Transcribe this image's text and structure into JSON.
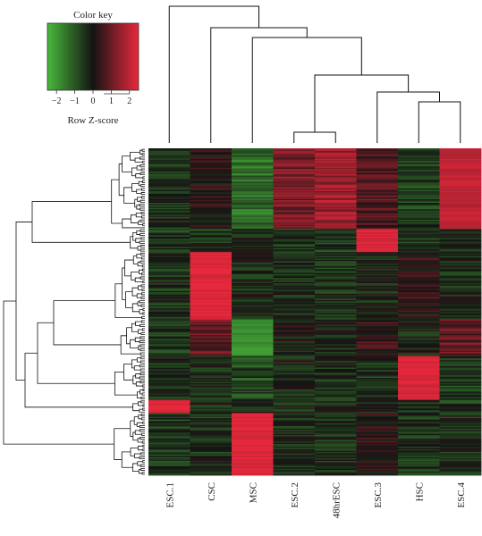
{
  "chart_data": {
    "type": "heatmap",
    "title": "",
    "columns": [
      "ESC.1",
      "CSC",
      "MSC",
      "ESC.2",
      "48hrESC",
      "ESC.3",
      "HSC",
      "ESC.4"
    ],
    "color_scale": {
      "low": "#48b83a",
      "mid": "#141414",
      "high": "#e8283c",
      "range": [
        -2.5,
        2.5
      ]
    },
    "color_key": {
      "title": "Color key",
      "xlabel": "Row Z-score",
      "ticks": [
        "−2",
        "−1",
        "0",
        "1",
        "2"
      ],
      "tick_values": [
        -2,
        -1,
        0,
        1,
        2
      ]
    },
    "column_dendrogram": {
      "merges": [
        [
          "48hrESC",
          "ESC.2"
        ],
        [
          "HSC",
          "ESC.4"
        ],
        [
          "ESC.3",
          "HSC+ESC.4"
        ],
        [
          "ESC.2+48hrESC",
          "ESC.3+HSC+ESC.4"
        ],
        [
          "MSC",
          "ESC.2..ESC.4"
        ],
        [
          "CSC",
          "MSC..ESC.4"
        ],
        [
          "ESC.1",
          "CSC..ESC.4"
        ]
      ]
    },
    "row_clusters": [
      {
        "rows": 62,
        "profile": [
          -0.4,
          0.2,
          -1.3,
          1.2,
          1.6,
          0.7,
          -0.6,
          2.0
        ]
      },
      {
        "rows": 18,
        "profile": [
          -0.5,
          -0.4,
          -0.3,
          -0.5,
          -0.6,
          2.3,
          -0.4,
          -0.3
        ]
      },
      {
        "rows": 52,
        "profile": [
          -0.4,
          2.4,
          -0.3,
          -0.3,
          -0.4,
          -0.2,
          0.3,
          -0.3
        ]
      },
      {
        "rows": 28,
        "profile": [
          -0.5,
          0.9,
          -1.9,
          0.0,
          -0.3,
          0.4,
          -0.2,
          0.9
        ]
      },
      {
        "rows": 34,
        "profile": [
          -0.4,
          -0.3,
          -0.8,
          -0.2,
          -0.4,
          -0.4,
          2.3,
          -0.6
        ]
      },
      {
        "rows": 10,
        "profile": [
          2.4,
          -0.3,
          -0.4,
          -0.3,
          -0.3,
          -0.2,
          -0.4,
          -0.5
        ]
      },
      {
        "rows": 48,
        "profile": [
          -0.5,
          -0.4,
          2.4,
          -0.3,
          -0.4,
          0.2,
          -0.4,
          -0.3
        ]
      }
    ]
  }
}
